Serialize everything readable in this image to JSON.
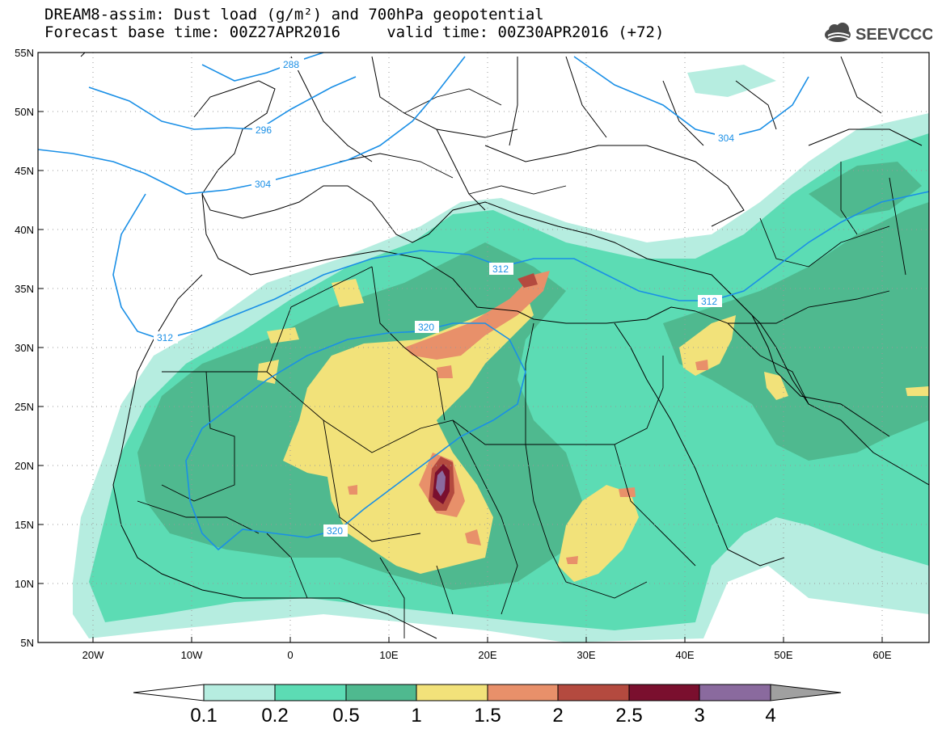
{
  "title_line1": "DREAM8-assim: Dust load (g/m²) and 700hPa geopotential",
  "title_line2": "Forecast base time: 00Z27APR2016     valid time: 00Z30APR2016 (+72)",
  "logo_text": "SEEVCCC",
  "lat_labels": [
    "55N",
    "50N",
    "45N",
    "40N",
    "35N",
    "30N",
    "25N",
    "20N",
    "15N",
    "10N",
    "5N"
  ],
  "lon_labels": [
    "20W",
    "10W",
    "0",
    "10E",
    "20E",
    "30E",
    "40E",
    "50E",
    "60E"
  ],
  "contour_labels": [
    "288",
    "296",
    "304",
    "304",
    "312",
    "312",
    "312",
    "320",
    "320"
  ],
  "colorbar": {
    "labels": [
      "0.1",
      "0.2",
      "0.5",
      "1",
      "1.5",
      "2",
      "2.5",
      "3",
      "4"
    ],
    "colors": [
      "#ffffff",
      "#b6ede0",
      "#5cdcb4",
      "#4fb98f",
      "#f2e27a",
      "#e8906a",
      "#b44a3f",
      "#7a0f2e",
      "#8a6a9e",
      "#a0a0a0"
    ]
  },
  "dust_colors": {
    "lvl1": "#b6ede0",
    "lvl2": "#5cdcb4",
    "lvl3": "#4fb98f",
    "lvl4": "#f2e27a",
    "lvl5": "#e8906a",
    "lvl6": "#b44a3f",
    "lvl7": "#7a0f2e",
    "lvl8": "#8a6a9e"
  },
  "contour_color": "#1a8fe6"
}
